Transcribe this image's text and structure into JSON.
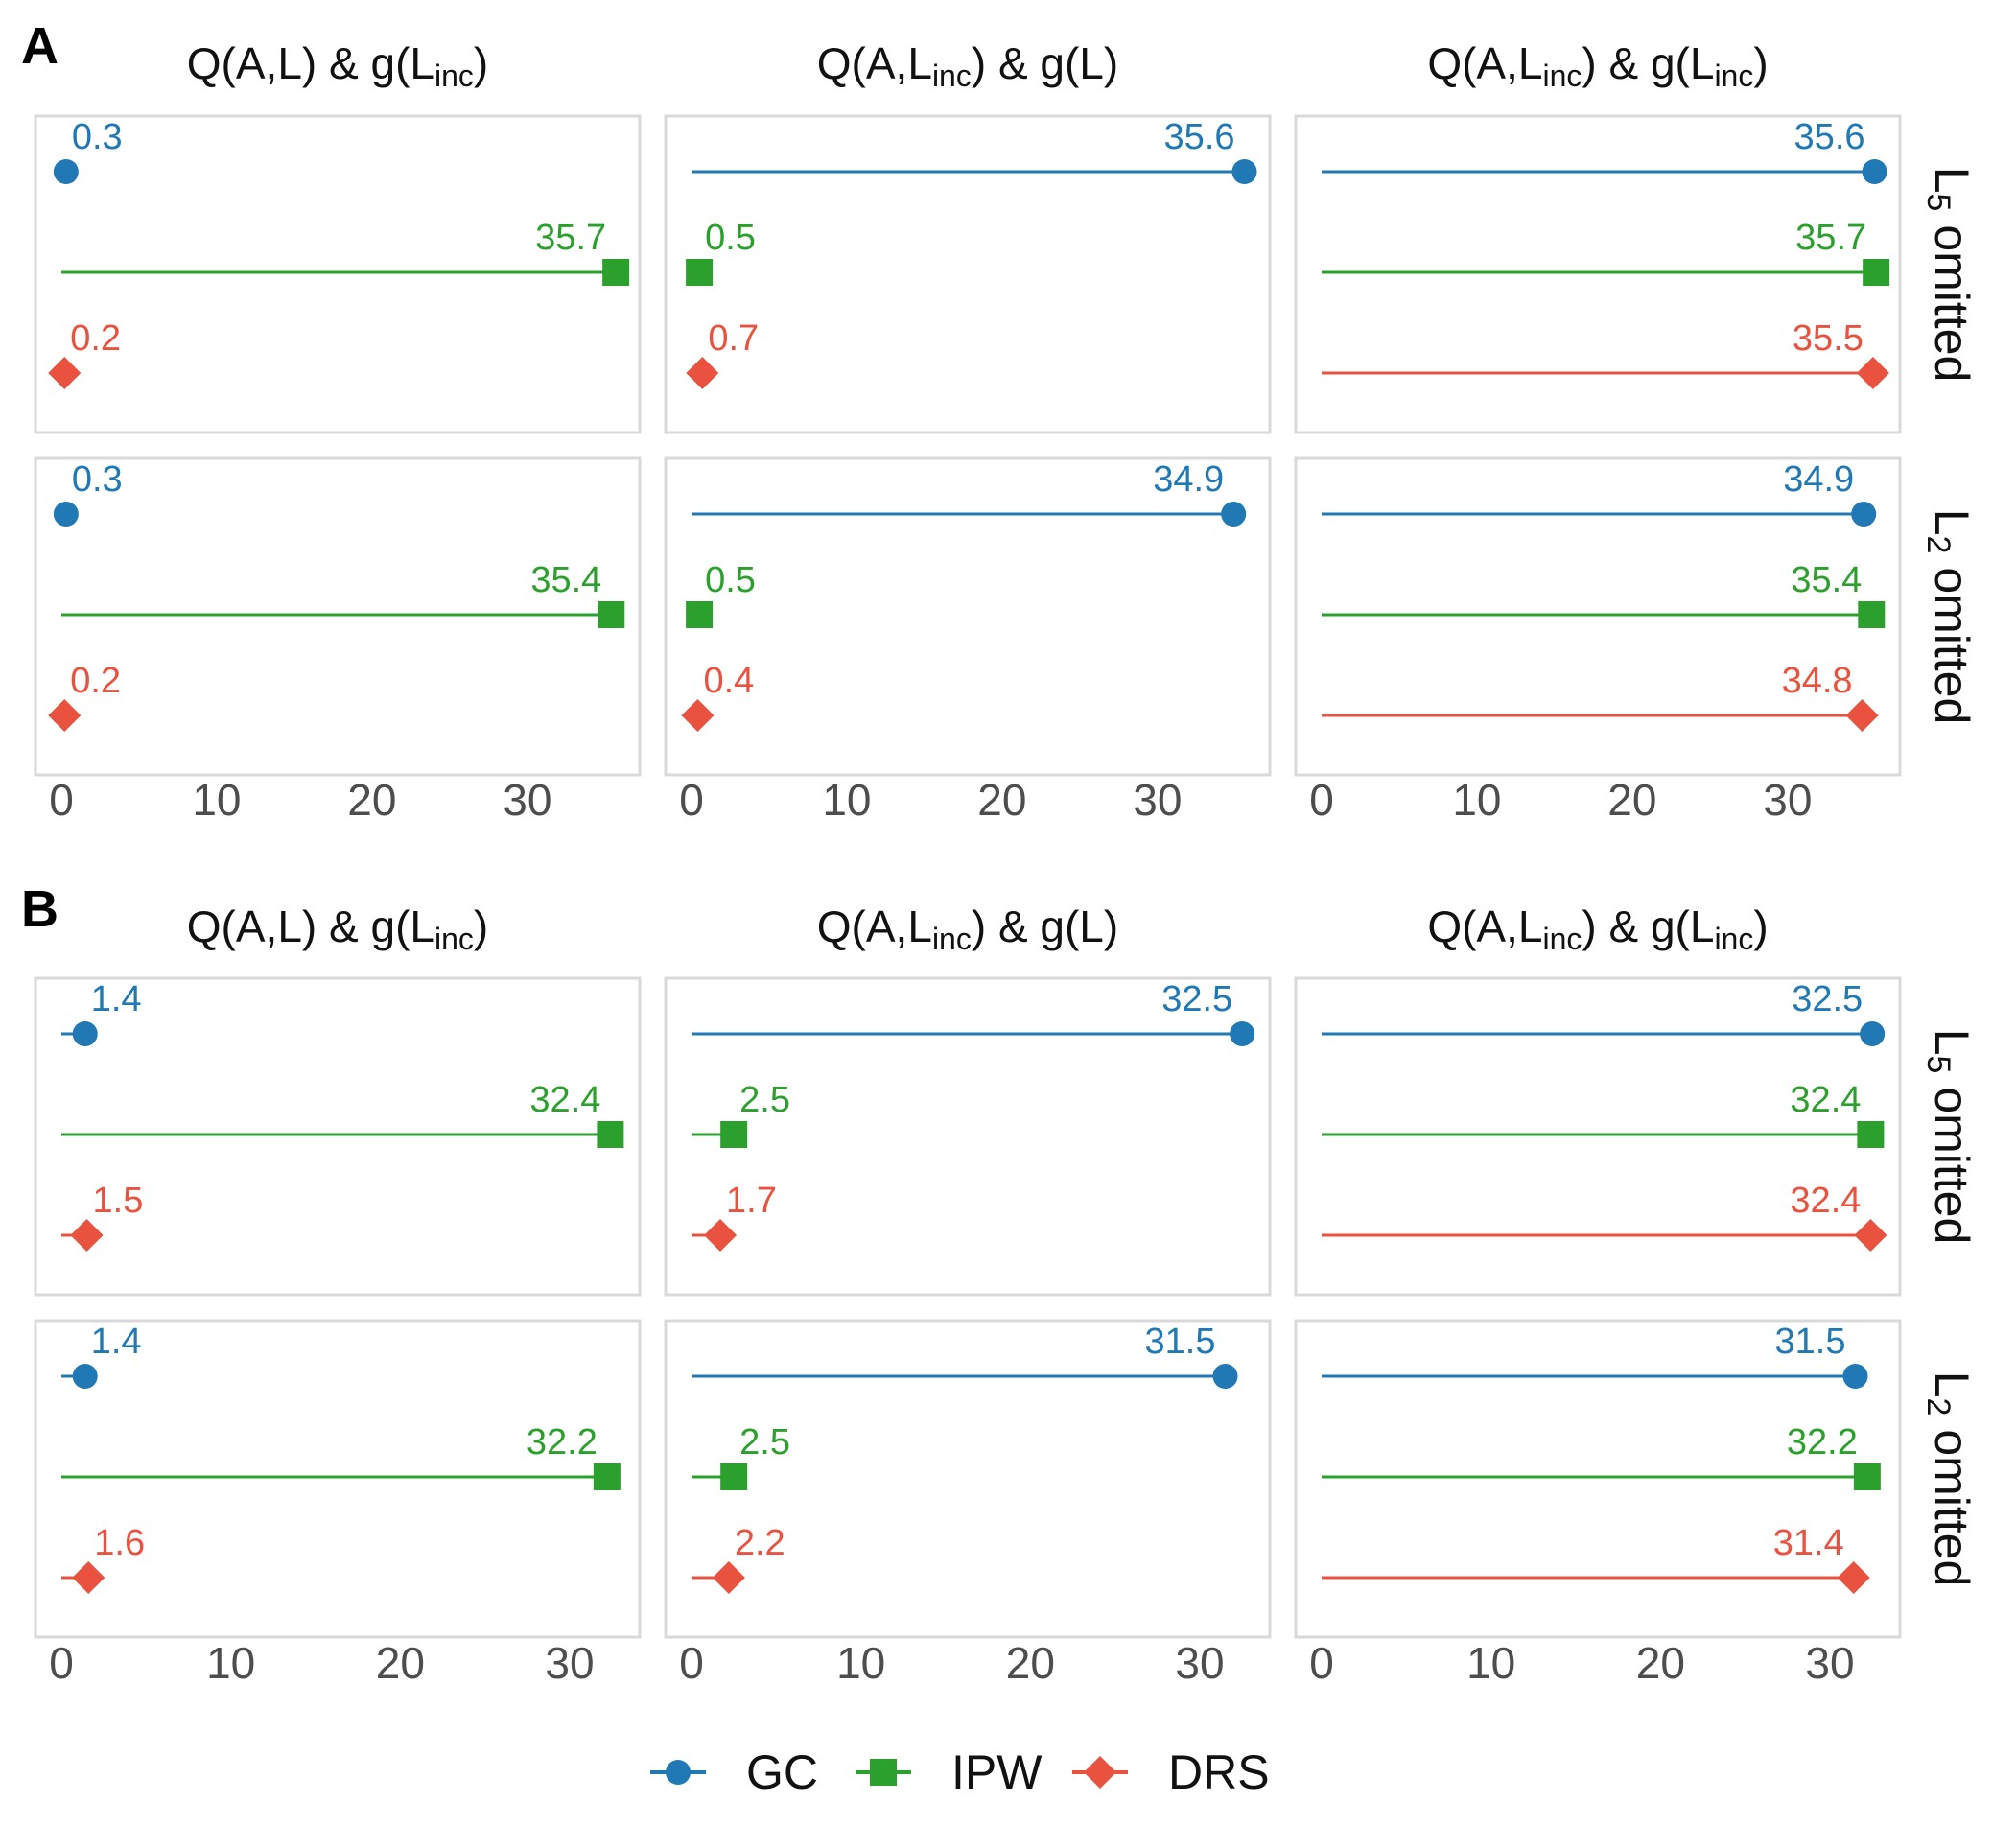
{
  "figure": {
    "legend": [
      {
        "name": "GC",
        "color": "#2078b4",
        "shape": "circle"
      },
      {
        "name": "IPW",
        "color": "#2ca02c",
        "shape": "square"
      },
      {
        "name": "DRS",
        "color": "#e8523f",
        "shape": "diamond"
      }
    ]
  },
  "chart_data": [
    {
      "type": "lollipop",
      "letter": "A",
      "xlim": [
        0,
        36
      ],
      "xticks": [
        "0",
        "10",
        "20",
        "30"
      ],
      "xtick_values": [
        0,
        10,
        20,
        30
      ],
      "columns": [
        {
          "pre": "Q(A,L) & g(L",
          "sub": "inc",
          "post": ")"
        },
        {
          "pre": "Q(A,L",
          "sub": "inc",
          "post": ") & g(L)"
        },
        {
          "pre": "Q(A,L",
          "sub": "inc",
          "post": ") & g(L",
          "sub2": "inc",
          "post2": ")"
        }
      ],
      "rows": [
        {
          "pre": "L",
          "sub": "5",
          "post": " omitted",
          "panels": [
            [
              0.3,
              35.7,
              0.2
            ],
            [
              35.6,
              0.5,
              0.7
            ],
            [
              35.6,
              35.7,
              35.5
            ]
          ],
          "labels": [
            [
              "0.3",
              "35.7",
              "0.2"
            ],
            [
              "35.6",
              "0.5",
              "0.7"
            ],
            [
              "35.6",
              "35.7",
              "35.5"
            ]
          ]
        },
        {
          "pre": "L",
          "sub": "2",
          "post": " omitted",
          "panels": [
            [
              0.3,
              35.4,
              0.2
            ],
            [
              34.9,
              0.5,
              0.4
            ],
            [
              34.9,
              35.4,
              34.8
            ]
          ],
          "labels": [
            [
              "0.3",
              "35.4",
              "0.2"
            ],
            [
              "34.9",
              "0.5",
              "0.4"
            ],
            [
              "34.9",
              "35.4",
              "34.8"
            ]
          ]
        }
      ]
    },
    {
      "type": "lollipop",
      "letter": "B",
      "xlim": [
        0,
        33
      ],
      "xticks": [
        "0",
        "10",
        "20",
        "30"
      ],
      "xtick_values": [
        0,
        10,
        20,
        30
      ],
      "columns": [
        {
          "pre": "Q(A,L) & g(L",
          "sub": "inc",
          "post": ")"
        },
        {
          "pre": "Q(A,L",
          "sub": "inc",
          "post": ") & g(L)"
        },
        {
          "pre": "Q(A,L",
          "sub": "inc",
          "post": ") & g(L",
          "sub2": "inc",
          "post2": ")"
        }
      ],
      "rows": [
        {
          "pre": "L",
          "sub": "5",
          "post": " omitted",
          "panels": [
            [
              1.4,
              32.4,
              1.5
            ],
            [
              32.5,
              2.5,
              1.7
            ],
            [
              32.5,
              32.4,
              32.4
            ]
          ],
          "labels": [
            [
              "1.4",
              "32.4",
              "1.5"
            ],
            [
              "32.5",
              "2.5",
              "1.7"
            ],
            [
              "32.5",
              "32.4",
              "32.4"
            ]
          ]
        },
        {
          "pre": "L",
          "sub": "2",
          "post": " omitted",
          "panels": [
            [
              1.4,
              32.2,
              1.6
            ],
            [
              31.5,
              2.5,
              2.2
            ],
            [
              31.5,
              32.2,
              31.4
            ]
          ],
          "labels": [
            [
              "1.4",
              "32.2",
              "1.6"
            ],
            [
              "31.5",
              "2.5",
              "2.2"
            ],
            [
              "31.5",
              "32.2",
              "31.4"
            ]
          ]
        }
      ]
    }
  ]
}
